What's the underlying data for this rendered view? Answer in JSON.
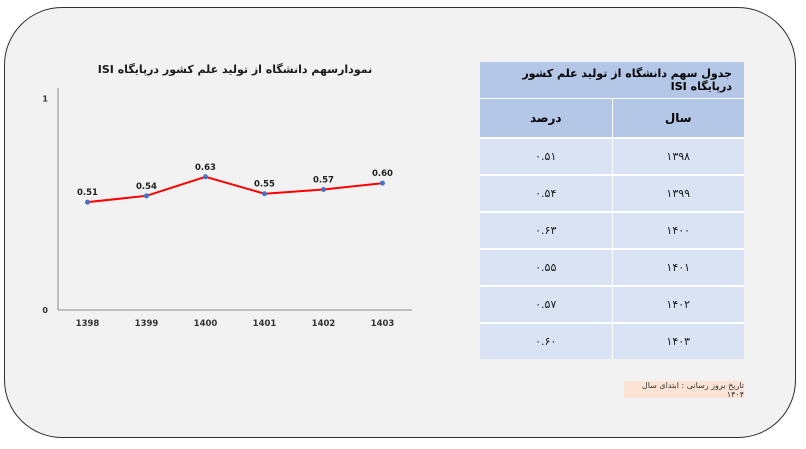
{
  "chart_data": {
    "type": "line",
    "title": "نمودارسهم دانشگاه از تولید علم کشور درپایگاه ISI",
    "categories": [
      "1398",
      "1399",
      "1400",
      "1401",
      "1402",
      "1403"
    ],
    "values": [
      0.51,
      0.54,
      0.63,
      0.55,
      0.57,
      0.6
    ],
    "data_labels": [
      "0.51",
      "0.54",
      "0.63",
      "0.55",
      "0.57",
      "0.60"
    ],
    "y_ticks": [
      "0",
      "1"
    ],
    "ylim": [
      0,
      1.05
    ],
    "line_color": "#ff0000",
    "marker_color": "#4472c4",
    "grid": false,
    "legend": "none"
  },
  "table": {
    "title": "جدول سهم دانشگاه از تولید علم کشور درپایگاه ISI",
    "headers": {
      "year": "سال",
      "percent": "درصد"
    },
    "rows": [
      {
        "year": "۱۳۹۸",
        "percent": "۰.۵۱"
      },
      {
        "year": "۱۳۹۹",
        "percent": "۰.۵۴"
      },
      {
        "year": "۱۴۰۰",
        "percent": "۰.۶۳"
      },
      {
        "year": "۱۴۰۱",
        "percent": "۰.۵۵"
      },
      {
        "year": "۱۴۰۲",
        "percent": "۰.۵۷"
      },
      {
        "year": "۱۴۰۳",
        "percent": "۰.۶۰"
      }
    ],
    "header_color": "#b4c7e7",
    "row_color": "#dae3f3"
  },
  "note": "تاریخ بروز رسانی : ابتدای سال ۱۴۰۴"
}
